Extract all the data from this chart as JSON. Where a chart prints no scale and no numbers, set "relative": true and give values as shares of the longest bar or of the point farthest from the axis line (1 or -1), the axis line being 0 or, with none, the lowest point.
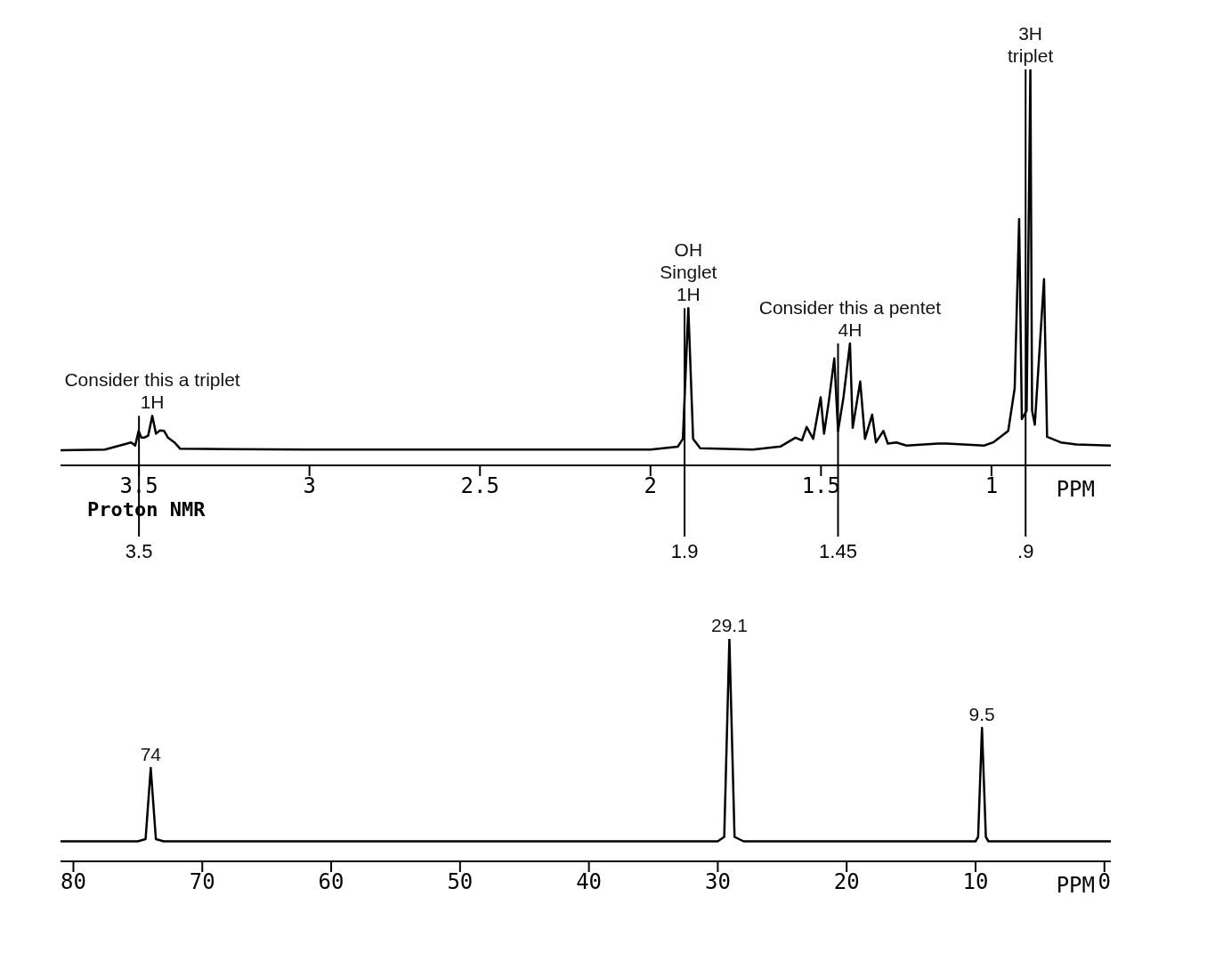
{
  "chart_data": [
    {
      "type": "line",
      "relative": true,
      "xlabel": "PPM",
      "xlim": [
        3.73,
        0.65
      ],
      "xticks": [
        3.5,
        3.0,
        2.5,
        2.0,
        1.5,
        1.0
      ],
      "marker": "none",
      "line_style": "solid",
      "series": [
        {
          "color": "#000000",
          "x": [
            3.73,
            3.6,
            3.523,
            3.511,
            3.501,
            3.493,
            3.485,
            3.473,
            3.461,
            3.45,
            3.439,
            3.426,
            3.415,
            3.396,
            3.379,
            3.0,
            2.5,
            2.0,
            1.92,
            1.905,
            1.889,
            1.875,
            1.854,
            1.7,
            1.618,
            1.575,
            1.556,
            1.542,
            1.523,
            1.501,
            1.491,
            1.477,
            1.461,
            1.45,
            1.434,
            1.415,
            1.407,
            1.385,
            1.371,
            1.35,
            1.339,
            1.317,
            1.304,
            1.279,
            1.249,
            1.157,
            1.13,
            1.022,
            0.995,
            0.951,
            0.932,
            0.919,
            0.911,
            0.897,
            0.886,
            0.881,
            0.873,
            0.846,
            0.837,
            0.797,
            0.751,
            0.65
          ],
          "values": [
            0.038,
            0.04,
            0.058,
            0.05,
            0.087,
            0.07,
            0.07,
            0.075,
            0.125,
            0.08,
            0.088,
            0.087,
            0.07,
            0.058,
            0.042,
            0.04,
            0.04,
            0.04,
            0.047,
            0.067,
            0.397,
            0.067,
            0.043,
            0.04,
            0.048,
            0.07,
            0.063,
            0.097,
            0.067,
            0.172,
            0.08,
            0.162,
            0.27,
            0.087,
            0.172,
            0.308,
            0.095,
            0.212,
            0.067,
            0.128,
            0.058,
            0.087,
            0.055,
            0.058,
            0.05,
            0.055,
            0.055,
            0.05,
            0.058,
            0.087,
            0.195,
            0.622,
            0.117,
            0.138,
            1,
            0.138,
            0.103,
            0.47,
            0.072,
            0.058,
            0.053,
            0.05
          ]
        }
      ],
      "ref_lines": [
        {
          "axis": "x",
          "value": 3.5,
          "label": "3.5"
        },
        {
          "axis": "x",
          "value": 1.9,
          "label": "1.9"
        },
        {
          "axis": "x",
          "value": 1.45,
          "label": "1.45"
        },
        {
          "axis": "x",
          "value": 0.9,
          "label": ".9"
        }
      ],
      "annotations": [
        {
          "text": "Consider this a triplet",
          "x": 3.461,
          "y": 0.125
        },
        {
          "text": "1H",
          "x": 3.461,
          "y": 0.125
        },
        {
          "text": "OH",
          "x": 1.889,
          "y": 0.397
        },
        {
          "text": "Singlet",
          "x": 1.889,
          "y": 0.397
        },
        {
          "text": "1H",
          "x": 1.889,
          "y": 0.397
        },
        {
          "text": "Consider this a pentet",
          "x": 1.415,
          "y": 0.308
        },
        {
          "text": "4H",
          "x": 1.415,
          "y": 0.308
        },
        {
          "text": "3H",
          "x": 0.886,
          "y": 1
        },
        {
          "text": "triplet",
          "x": 0.886,
          "y": 1
        },
        "Proton NMR"
      ]
    },
    {
      "type": "line",
      "relative": true,
      "xlabel": "PPM",
      "xlim": [
        81,
        -0.5
      ],
      "xticks": [
        80,
        70,
        60,
        50,
        40,
        30,
        20,
        10,
        0
      ],
      "marker": "none",
      "line_style": "solid",
      "series": [
        {
          "color": "#000000",
          "x": [
            81,
            75,
            74.4,
            74,
            73.6,
            73,
            30,
            29.5,
            29.1,
            28.7,
            28,
            10,
            9.8,
            9.5,
            9.2,
            9,
            -0.5
          ],
          "values": [
            0.09,
            0.09,
            0.1,
            0.42,
            0.1,
            0.09,
            0.09,
            0.11,
            1,
            0.11,
            0.09,
            0.09,
            0.11,
            0.6,
            0.11,
            0.09,
            0.09
          ]
        }
      ],
      "annotations": [
        {
          "text": "74",
          "x": 74,
          "y": 0.42
        },
        {
          "text": "29.1",
          "x": 29.1,
          "y": 1
        },
        {
          "text": "9.5",
          "x": 9.5,
          "y": 0.6
        }
      ]
    }
  ]
}
